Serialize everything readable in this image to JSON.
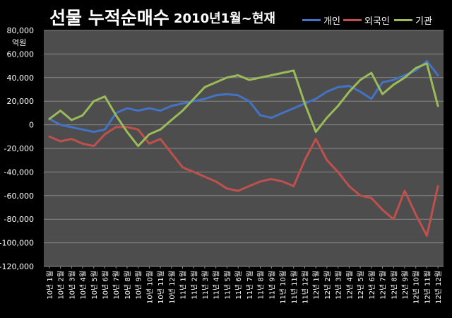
{
  "chart_data": {
    "type": "line",
    "title": "선물  누적순매수",
    "subtitle": "2010년1월~현재",
    "ylabel": "억원",
    "ylim": [
      -120000,
      80000
    ],
    "yticks": [
      "80,000",
      "60,000",
      "40,000",
      "20,000",
      "0",
      "-20,000",
      "-40,000",
      "-60,000",
      "-80,000",
      "-100,000",
      "-120,000"
    ],
    "yticks_values": [
      80000,
      60000,
      40000,
      20000,
      0,
      -20000,
      -40000,
      -60000,
      -80000,
      -100000,
      -120000
    ],
    "grid": true,
    "legend_position": "top-right",
    "categories": [
      "10년 1월",
      "10년 2월",
      "10년 3월",
      "10년 4월",
      "10년 5월",
      "10년 6월",
      "10년 7월",
      "10년 8월",
      "10년 9월",
      "10년 10월",
      "10년 11월",
      "10년 12월",
      "11년 1월",
      "11년 2월",
      "11년 3월",
      "11년 4월",
      "11년 5월",
      "11년 6월",
      "11년 7월",
      "11년 8월",
      "11년 9월",
      "11년 10월",
      "11년 11월",
      "11년 12월",
      "12년 1월",
      "12년 2월",
      "12년 3월",
      "12년 4월",
      "12년 5월",
      "12년 6월",
      "12년 7월",
      "12년 8월",
      "12년 9월",
      "12년 10월",
      "12년 11월",
      "12년 12월"
    ],
    "series": [
      {
        "name": "개인",
        "color": "#4472C4",
        "values": [
          5000,
          0,
          -2000,
          -4000,
          -6000,
          -4000,
          10000,
          14000,
          12000,
          14000,
          12000,
          16000,
          18000,
          20000,
          22000,
          25000,
          26000,
          25000,
          20000,
          8000,
          6000,
          10000,
          14000,
          18000,
          22000,
          28000,
          32000,
          33000,
          28000,
          22000,
          36000,
          38000,
          42000,
          46000,
          54000,
          42000
        ]
      },
      {
        "name": "외국인",
        "color": "#C0504D",
        "values": [
          -10000,
          -14000,
          -12000,
          -16000,
          -18000,
          -8000,
          -2000,
          -2000,
          -4000,
          -16000,
          -12000,
          -24000,
          -36000,
          -40000,
          -44000,
          -48000,
          -54000,
          -56000,
          -52000,
          -48000,
          -46000,
          -48000,
          -52000,
          -30000,
          -12000,
          -30000,
          -40000,
          -52000,
          -60000,
          -62000,
          -72000,
          -80000,
          -56000,
          -76000,
          -94000,
          -52000
        ]
      },
      {
        "name": "기관",
        "color": "#9BBB59",
        "values": [
          5000,
          12000,
          4000,
          8000,
          20000,
          24000,
          8000,
          -6000,
          -18000,
          -8000,
          -4000,
          4000,
          12000,
          22000,
          32000,
          36000,
          40000,
          42000,
          38000,
          40000,
          42000,
          44000,
          46000,
          18000,
          -6000,
          6000,
          16000,
          28000,
          38000,
          44000,
          26000,
          34000,
          40000,
          48000,
          52000,
          16000
        ]
      }
    ]
  }
}
